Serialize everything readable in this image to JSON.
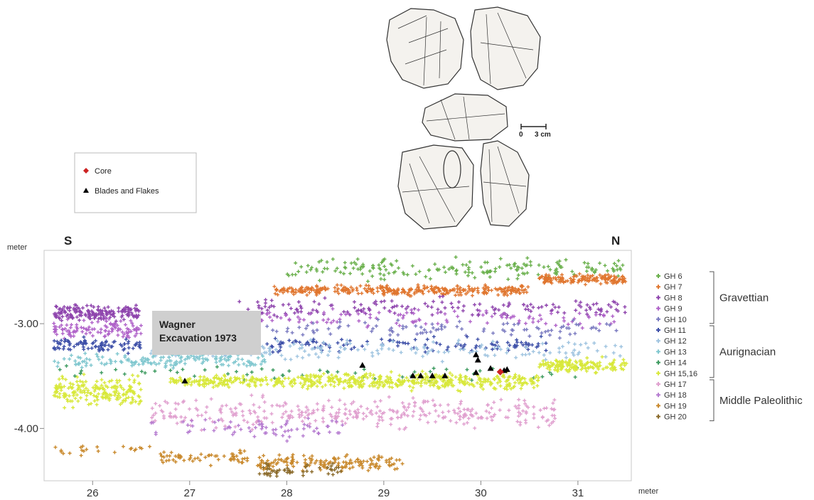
{
  "figure": {
    "unit_y": "meter",
    "unit_x": "meter",
    "direction_left": "S",
    "direction_right": "N",
    "annotation": "Wagner\nExcavation 1973",
    "scale_bar": {
      "start_label": "0",
      "end_label": "3 cm"
    },
    "artifact_drawings": [
      "core-view-1",
      "core-view-2",
      "core-view-3",
      "core-view-4",
      "core-view-5"
    ]
  },
  "key": {
    "items": [
      {
        "label": "Core",
        "symbol": "diamond",
        "color": "#cc2222"
      },
      {
        "label": "Blades and Flakes",
        "symbol": "triangle",
        "color": "#000000"
      }
    ]
  },
  "chart_data": {
    "type": "scatter",
    "title": "",
    "xlabel": "meter",
    "ylabel": "meter",
    "xlim": [
      25.5,
      31.55
    ],
    "ylim": [
      -4.5,
      -2.3
    ],
    "x_ticks": [
      26,
      27,
      28,
      29,
      30,
      31
    ],
    "x_tick_labels": [
      "26",
      "27",
      "28",
      "29",
      "30",
      "31"
    ],
    "y_ticks": [
      -3.0,
      -4.0
    ],
    "y_tick_labels": [
      "-3.00",
      "-4.00"
    ],
    "grid": false,
    "legend_position": "right",
    "series": [
      {
        "name": "GH 6",
        "color": "#6ab04c",
        "group": "Gravettian",
        "bands": [
          {
            "x0": 28.0,
            "x1": 31.5,
            "y": -2.48,
            "spread": 0.09,
            "n": 190
          }
        ]
      },
      {
        "name": "GH 7",
        "color": "#e0762f",
        "group": "Gravettian",
        "bands": [
          {
            "x0": 27.85,
            "x1": 30.5,
            "y": -2.68,
            "spread": 0.04,
            "n": 320
          },
          {
            "x0": 30.6,
            "x1": 31.5,
            "y": -2.58,
            "spread": 0.04,
            "n": 140
          }
        ]
      },
      {
        "name": "GH 8",
        "color": "#8e44ad",
        "group": "Gravettian",
        "bands": [
          {
            "x0": 25.6,
            "x1": 26.5,
            "y": -2.9,
            "spread": 0.07,
            "n": 170
          },
          {
            "x0": 27.5,
            "x1": 31.5,
            "y": -2.85,
            "spread": 0.08,
            "n": 160
          }
        ]
      },
      {
        "name": "GH 9",
        "color": "#b063c9",
        "group": "Gravettian",
        "bands": [
          {
            "x0": 25.6,
            "x1": 26.5,
            "y": -3.05,
            "spread": 0.08,
            "n": 110
          },
          {
            "x0": 27.6,
            "x1": 31.5,
            "y": -2.95,
            "spread": 0.08,
            "n": 110
          }
        ]
      },
      {
        "name": "GH 10",
        "color": "#7a7ac0",
        "group": "Gravettian",
        "bands": [
          {
            "x0": 26.6,
            "x1": 31.5,
            "y": -3.05,
            "spread": 0.07,
            "n": 120
          }
        ]
      },
      {
        "name": "GH 11",
        "color": "#3d4fa8",
        "group": "Aurignacian",
        "bands": [
          {
            "x0": 25.6,
            "x1": 26.5,
            "y": -3.2,
            "spread": 0.06,
            "n": 90
          },
          {
            "x0": 27.6,
            "x1": 30.7,
            "y": -3.2,
            "spread": 0.06,
            "n": 120
          }
        ]
      },
      {
        "name": "GH 12",
        "color": "#9fc4e0",
        "group": "Aurignacian",
        "bands": [
          {
            "x0": 26.6,
            "x1": 31.5,
            "y": -3.25,
            "spread": 0.08,
            "n": 170
          }
        ]
      },
      {
        "name": "GH 13",
        "color": "#80c7cf",
        "group": "Aurignacian",
        "bands": [
          {
            "x0": 25.6,
            "x1": 27.8,
            "y": -3.35,
            "spread": 0.06,
            "n": 150
          }
        ]
      },
      {
        "name": "GH 14",
        "color": "#3c9a5f",
        "group": "Aurignacian",
        "bands": [
          {
            "x0": 25.6,
            "x1": 31.0,
            "y": -3.48,
            "spread": 0.06,
            "n": 60
          }
        ]
      },
      {
        "name": "GH 15,16",
        "color": "#d8e83a",
        "group": "Aurignacian",
        "bands": [
          {
            "x0": 25.6,
            "x1": 26.5,
            "y": -3.65,
            "spread": 0.12,
            "n": 190
          },
          {
            "x0": 26.8,
            "x1": 28.2,
            "y": -3.55,
            "spread": 0.05,
            "n": 170
          },
          {
            "x0": 28.2,
            "x1": 30.6,
            "y": -3.55,
            "spread": 0.07,
            "n": 380
          },
          {
            "x0": 30.6,
            "x1": 31.5,
            "y": -3.4,
            "spread": 0.06,
            "n": 140
          }
        ]
      },
      {
        "name": "GH 17",
        "color": "#e0a0cf",
        "group": "Middle Paleolithic",
        "bands": [
          {
            "x0": 26.6,
            "x1": 27.6,
            "y": -3.85,
            "spread": 0.12,
            "n": 70
          },
          {
            "x0": 27.6,
            "x1": 30.8,
            "y": -3.85,
            "spread": 0.12,
            "n": 270
          }
        ]
      },
      {
        "name": "GH 18",
        "color": "#b57bd0",
        "group": "Middle Paleolithic",
        "bands": [
          {
            "x0": 26.6,
            "x1": 28.6,
            "y": -4.0,
            "spread": 0.08,
            "n": 70
          }
        ]
      },
      {
        "name": "GH 19",
        "color": "#c9892c",
        "group": "Middle Paleolithic",
        "bands": [
          {
            "x0": 25.6,
            "x1": 26.6,
            "y": -4.2,
            "spread": 0.05,
            "n": 22
          },
          {
            "x0": 26.7,
            "x1": 27.6,
            "y": -4.28,
            "spread": 0.05,
            "n": 60
          },
          {
            "x0": 27.7,
            "x1": 29.2,
            "y": -4.33,
            "spread": 0.07,
            "n": 150
          }
        ]
      },
      {
        "name": "GH 20",
        "color": "#8a6a2a",
        "group": "Middle Paleolithic",
        "bands": [
          {
            "x0": 27.7,
            "x1": 28.6,
            "y": -4.4,
            "spread": 0.05,
            "n": 50
          }
        ]
      }
    ],
    "markers": {
      "blades_and_flakes": [
        [
          26.95,
          -3.55
        ],
        [
          28.78,
          -3.4
        ],
        [
          29.3,
          -3.5
        ],
        [
          29.38,
          -3.5
        ],
        [
          29.5,
          -3.5
        ],
        [
          29.63,
          -3.5
        ],
        [
          29.95,
          -3.3
        ],
        [
          29.97,
          -3.35
        ],
        [
          29.95,
          -3.47
        ],
        [
          30.1,
          -3.43
        ],
        [
          30.24,
          -3.45
        ],
        [
          30.27,
          -3.44
        ]
      ],
      "core": [
        [
          30.2,
          -3.46
        ]
      ]
    },
    "groups": [
      {
        "name": "Gravettian",
        "members": [
          "GH 6",
          "GH 7",
          "GH 8",
          "GH 9",
          "GH 10"
        ]
      },
      {
        "name": "Aurignacian",
        "members": [
          "GH 11",
          "GH 12",
          "GH 13",
          "GH 14",
          "GH 15,16"
        ]
      },
      {
        "name": "Middle Paleolithic",
        "members": [
          "GH 17",
          "GH 18",
          "GH 19",
          "GH 20"
        ]
      }
    ]
  }
}
